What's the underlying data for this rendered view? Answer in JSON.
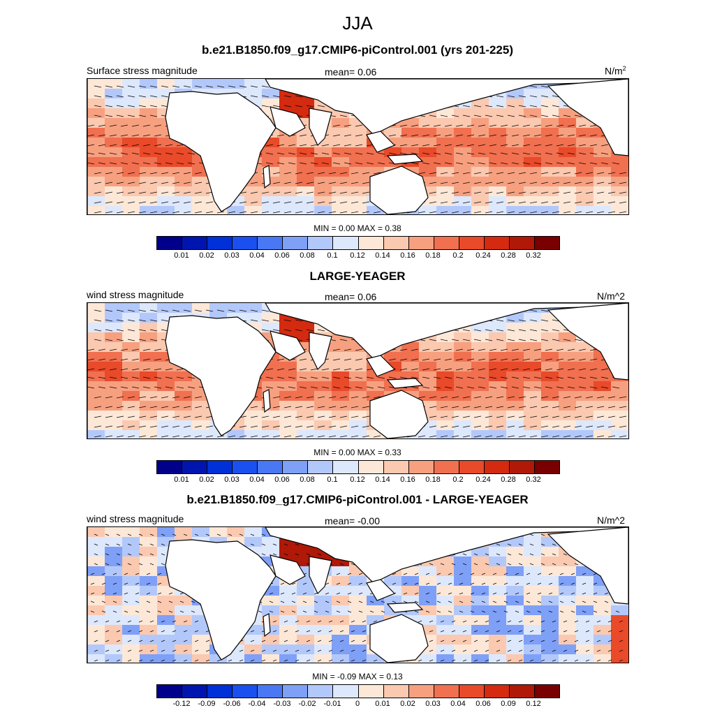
{
  "title": "JJA",
  "panels": [
    {
      "title": "b.e21.B1850.f09_g17.CMIP6-piControl.001 (yrs 201-225)",
      "left_label": "Surface stress magnitude",
      "mean_label": "mean=   0.06",
      "units": "N/m",
      "units_sup": "2",
      "minmax": "MIN =   0.00 MAX =   0.38",
      "ticks": [
        "0.01",
        "0.02",
        "0.03",
        "0.04",
        "0.06",
        "0.08",
        "0.1",
        "0.12",
        "0.14",
        "0.16",
        "0.18",
        "0.2",
        "0.24",
        "0.28",
        "0.32"
      ],
      "mode": "field"
    },
    {
      "title": "LARGE-YEAGER",
      "left_label": "wind stress magnitude",
      "mean_label": "mean=   0.06",
      "units": "N/m^2",
      "units_sup": "",
      "minmax": "MIN =   0.00 MAX =   0.33",
      "ticks": [
        "0.01",
        "0.02",
        "0.03",
        "0.04",
        "0.06",
        "0.08",
        "0.1",
        "0.12",
        "0.14",
        "0.16",
        "0.18",
        "0.2",
        "0.24",
        "0.28",
        "0.32"
      ],
      "mode": "field"
    },
    {
      "title": "b.e21.B1850.f09_g17.CMIP6-piControl.001 - LARGE-YEAGER",
      "left_label": "wind stress magnitude",
      "mean_label": "mean=  -0.00",
      "units": "N/m^2",
      "units_sup": "",
      "minmax": "MIN =  -0.09 MAX =   0.13",
      "ticks": [
        "-0.12",
        "-0.09",
        "-0.06",
        "-0.04",
        "-0.03",
        "-0.02",
        "-0.01",
        "0",
        "0.01",
        "0.02",
        "0.03",
        "0.04",
        "0.06",
        "0.09",
        "0.12"
      ],
      "mode": "diff"
    }
  ],
  "colors": {
    "palette": [
      "#00008b",
      "#0015b0",
      "#0030d8",
      "#1a50f0",
      "#4a78f5",
      "#7fa0f7",
      "#b3c8fa",
      "#dde8fc",
      "#fde8d8",
      "#fbc9b0",
      "#f7a080",
      "#f07050",
      "#e84a2a",
      "#d42a10",
      "#b01808",
      "#7a0000"
    ]
  }
}
